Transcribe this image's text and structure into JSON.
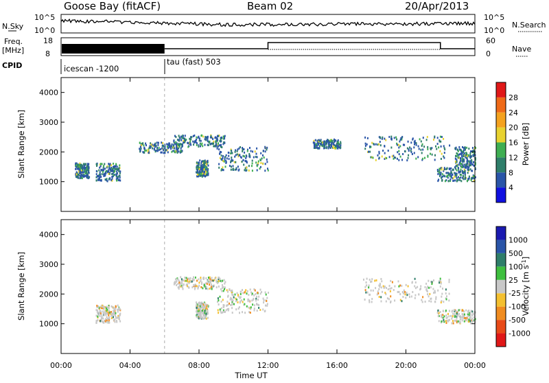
{
  "header": {
    "station": "Goose Bay (fitACF)",
    "beam": "Beam 02",
    "date": "20/Apr/2013"
  },
  "strip": {
    "nsky_label": "N.Sky",
    "nsearch_label": "N.Search",
    "noise_ticks_left": [
      "10^5",
      "10^0"
    ],
    "noise_ticks_right": [
      "10^5",
      "10^0"
    ],
    "freq_label_1": "Freq.",
    "freq_label_2": "[MHz]",
    "freq_ticks": [
      "18",
      "8"
    ],
    "nave_label": "Nave",
    "nave_ticks": [
      "60",
      "0"
    ],
    "cpid_label": "CPID",
    "cpid_modes": [
      "icescan -1200",
      "tau (fast) 503"
    ]
  },
  "chart_data": [
    {
      "type": "heatmap",
      "title": "",
      "xlabel": "",
      "ylabel": "Slant Range [km]",
      "xlim": [
        0,
        24
      ],
      "ylim": [
        0,
        4500
      ],
      "yticks": [
        1000,
        2000,
        3000,
        4000
      ],
      "colorbar": {
        "label": "Power [dB]",
        "ticks": [
          4,
          8,
          12,
          16,
          20,
          24,
          28
        ],
        "range": [
          0,
          30
        ],
        "colors": [
          "#1010e0",
          "#2a55a8",
          "#2f7e6a",
          "#3fae52",
          "#e8d230",
          "#f4a21f",
          "#ef6a18",
          "#e01818"
        ]
      },
      "regions": [
        {
          "t0": 0.8,
          "t1": 1.6,
          "r0": 1150,
          "r1": 1650
        },
        {
          "t0": 2.0,
          "t1": 3.4,
          "r0": 1050,
          "r1": 1650
        },
        {
          "t0": 4.5,
          "t1": 7.0,
          "r0": 2000,
          "r1": 2350
        },
        {
          "t0": 6.5,
          "t1": 9.5,
          "r0": 2200,
          "r1": 2600
        },
        {
          "t0": 7.8,
          "t1": 8.5,
          "r0": 1200,
          "r1": 1750
        },
        {
          "t0": 9.0,
          "t1": 12.0,
          "r0": 1400,
          "r1": 2200
        },
        {
          "t0": 14.6,
          "t1": 16.2,
          "r0": 2150,
          "r1": 2450
        },
        {
          "t0": 17.5,
          "t1": 22.5,
          "r0": 1750,
          "r1": 2550
        },
        {
          "t0": 21.8,
          "t1": 24.0,
          "r0": 1050,
          "r1": 1500
        },
        {
          "t0": 22.8,
          "t1": 24.0,
          "r0": 1500,
          "r1": 2200
        }
      ]
    },
    {
      "type": "heatmap",
      "title": "",
      "xlabel": "Time UT",
      "ylabel": "Slant Range [km]",
      "xlim": [
        0,
        24
      ],
      "ylim": [
        0,
        4500
      ],
      "yticks": [
        1000,
        2000,
        3000,
        4000
      ],
      "xtick_labels": [
        "00:00",
        "04:00",
        "08:00",
        "12:00",
        "16:00",
        "20:00",
        "00:00"
      ],
      "colorbar": {
        "label": "Velocity [m s",
        "label_sup": "-1",
        "label_end": "]",
        "ticks": [
          "1000",
          "500",
          "100",
          "25",
          "-25",
          "-100",
          "-500",
          "-1000"
        ],
        "colors": [
          "#1a1ab0",
          "#2a55a8",
          "#2f7e6a",
          "#3fbf3f",
          "#c8c8c8",
          "#f4c030",
          "#f08c20",
          "#e84a18",
          "#e01818"
        ]
      },
      "regions": [
        {
          "t0": 2.0,
          "t1": 3.4,
          "r0": 1050,
          "r1": 1650
        },
        {
          "t0": 6.5,
          "t1": 9.5,
          "r0": 2200,
          "r1": 2600
        },
        {
          "t0": 7.8,
          "t1": 8.5,
          "r0": 1200,
          "r1": 1750
        },
        {
          "t0": 9.0,
          "t1": 12.0,
          "r0": 1400,
          "r1": 2200
        },
        {
          "t0": 17.5,
          "t1": 22.5,
          "r0": 1750,
          "r1": 2550
        },
        {
          "t0": 21.8,
          "t1": 24.0,
          "r0": 1050,
          "r1": 1500
        }
      ]
    }
  ],
  "colors": {
    "axis": "#000000",
    "gray_marker": "#c8c8c8"
  }
}
